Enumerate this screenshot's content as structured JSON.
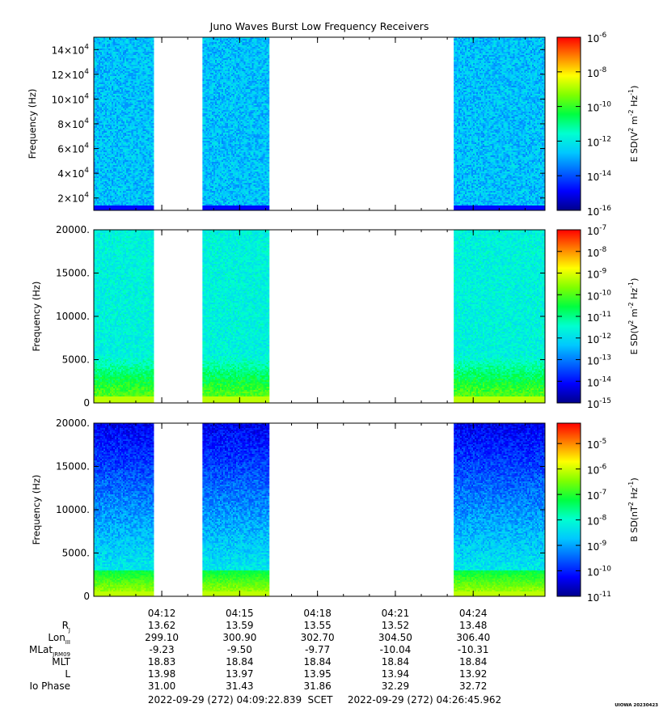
{
  "title": "Juno Waves Burst Low Frequency Receivers",
  "colors": {
    "gap": "#ffffff",
    "colormap": [
      "#00008c",
      "#0000ff",
      "#0064ff",
      "#00c8ff",
      "#00ffd0",
      "#00ff40",
      "#80ff00",
      "#ffff00",
      "#ff8000",
      "#ff0000"
    ]
  },
  "chart_data": [
    {
      "type": "heatmap",
      "panel": "top",
      "ylabel": "Frequency (Hz)",
      "yscale": "linear",
      "ylim": [
        10000,
        150000
      ],
      "yticks": [
        {
          "mantissa": "2×10",
          "exp": "4",
          "value": 20000
        },
        {
          "mantissa": "4×10",
          "exp": "4",
          "value": 40000
        },
        {
          "mantissa": "6×10",
          "exp": "4",
          "value": 60000
        },
        {
          "mantissa": "8×10",
          "exp": "4",
          "value": 80000
        },
        {
          "mantissa": "10×10",
          "exp": "4",
          "value": 100000
        },
        {
          "mantissa": "12×10",
          "exp": "4",
          "value": 120000
        },
        {
          "mantissa": "14×10",
          "exp": "4",
          "value": 140000
        }
      ],
      "colorbar": {
        "label": "E SD(V² m⁻² Hz⁻¹)",
        "label_parts": [
          "E SD(V",
          "2",
          " m",
          "-2",
          " Hz",
          "-1",
          ")"
        ],
        "scale": "log",
        "range_exp": [
          -16,
          -6
        ],
        "ticks_exp": [
          "-6",
          "-8",
          "-10",
          "-12",
          "-14",
          "-16"
        ]
      }
    },
    {
      "type": "heatmap",
      "panel": "middle",
      "ylabel": "Frequency (Hz)",
      "yscale": "linear",
      "ylim": [
        0,
        20000
      ],
      "yticks": [
        {
          "label": "0",
          "value": 0
        },
        {
          "label": "5000.",
          "value": 5000
        },
        {
          "label": "10000.",
          "value": 10000
        },
        {
          "label": "15000.",
          "value": 15000
        },
        {
          "label": "20000.",
          "value": 20000
        }
      ],
      "colorbar": {
        "label": "E SD(V² m⁻² Hz⁻¹)",
        "label_parts": [
          "E SD(V",
          "2",
          " m",
          "-2",
          " Hz",
          "-1",
          ")"
        ],
        "scale": "log",
        "range_exp": [
          -15,
          -7
        ],
        "ticks_exp": [
          "-7",
          "-8",
          "-9",
          "-10",
          "-11",
          "-12",
          "-13",
          "-14",
          "-15"
        ]
      }
    },
    {
      "type": "heatmap",
      "panel": "bottom",
      "ylabel": "Frequency (Hz)",
      "yscale": "linear",
      "ylim": [
        0,
        20000
      ],
      "yticks": [
        {
          "label": "0",
          "value": 0
        },
        {
          "label": "5000.",
          "value": 5000
        },
        {
          "label": "10000.",
          "value": 10000
        },
        {
          "label": "15000.",
          "value": 15000
        },
        {
          "label": "20000.",
          "value": 20000
        }
      ],
      "colorbar": {
        "label": "B SD(nT² Hz⁻¹)",
        "label_parts": [
          "B SD(nT",
          "2",
          " Hz",
          "-1",
          ")"
        ],
        "scale": "log",
        "range_exp": [
          -11,
          -4.2
        ],
        "ticks_exp": [
          "-5",
          "-6",
          "-7",
          "-8",
          "-9",
          "-10",
          "-11"
        ]
      }
    }
  ],
  "time_axis": {
    "start": "04:09:22.839",
    "end": "04:26:45.962",
    "major_ticks": [
      {
        "label": "04:12",
        "t": "04:12:00"
      },
      {
        "label": "04:15",
        "t": "04:15:00"
      },
      {
        "label": "04:18",
        "t": "04:18:00"
      },
      {
        "label": "04:21",
        "t": "04:21:00"
      },
      {
        "label": "04:24",
        "t": "04:24:00"
      }
    ],
    "data_segments": [
      {
        "start": "04:09:22.839",
        "end": "04:11:42"
      },
      {
        "start": "04:13:34",
        "end": "04:16:09"
      },
      {
        "start": "04:23:15",
        "end": "04:26:45.962"
      }
    ]
  },
  "ephemeris": {
    "rows": [
      {
        "label": "R",
        "sub": "J",
        "values": [
          "13.62",
          "13.59",
          "13.55",
          "13.52",
          "13.48"
        ]
      },
      {
        "label": "Lon",
        "sub": "III",
        "values": [
          "299.10",
          "300.90",
          "302.70",
          "304.50",
          "306.40"
        ]
      },
      {
        "label": "MLat",
        "sub": "JRM09",
        "values": [
          "-9.23",
          "-9.50",
          "-9.77",
          "-10.04",
          "-10.31"
        ]
      },
      {
        "label": "MLT",
        "sub": "",
        "values": [
          "18.83",
          "18.84",
          "18.84",
          "18.84",
          "18.84"
        ]
      },
      {
        "label": "L",
        "sub": "",
        "values": [
          "13.98",
          "13.97",
          "13.95",
          "13.94",
          "13.92"
        ]
      },
      {
        "label": "Io Phase",
        "sub": "",
        "values": [
          "31.00",
          "31.43",
          "31.86",
          "32.29",
          "32.72"
        ]
      }
    ]
  },
  "footer": {
    "start": "2022-09-29 (272) 04:09:22.839",
    "scet": "SCET",
    "end": "2022-09-29 (272) 04:26:45.962",
    "stamp": "UIOWA 20230423"
  }
}
